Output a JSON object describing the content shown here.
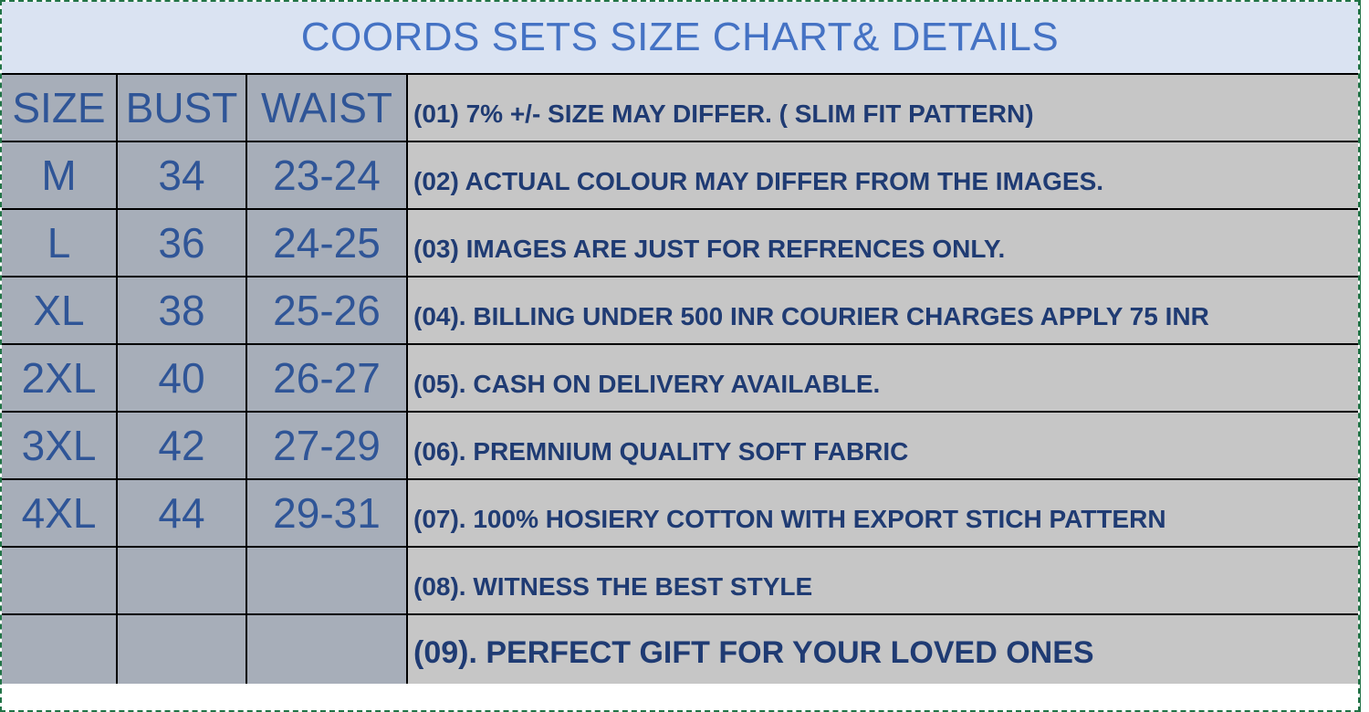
{
  "title": "COORDS SETS SIZE CHART& DETAILS",
  "headers": [
    "SIZE",
    "BUST",
    "WAIST"
  ],
  "rows": [
    {
      "size": "M",
      "bust": "34",
      "waist": "23-24"
    },
    {
      "size": "L",
      "bust": "36",
      "waist": "24-25"
    },
    {
      "size": "XL",
      "bust": "38",
      "waist": "25-26"
    },
    {
      "size": "2XL",
      "bust": "40",
      "waist": "26-27"
    },
    {
      "size": "3XL",
      "bust": "42",
      "waist": "27-29"
    },
    {
      "size": "4XL",
      "bust": "44",
      "waist": "29-31"
    },
    {
      "size": "",
      "bust": "",
      "waist": ""
    },
    {
      "size": "",
      "bust": "",
      "waist": ""
    }
  ],
  "details": [
    "(01)  7% +/- SIZE MAY DIFFER. ( SLIM FIT PATTERN)",
    "(02)   ACTUAL COLOUR MAY DIFFER FROM THE IMAGES.",
    "(03)   IMAGES ARE JUST FOR REFRENCES ONLY.",
    "(04).  BILLING UNDER 500 INR COURIER CHARGES APPLY 75 INR",
    "(05).  CASH ON DELIVERY AVAILABLE.",
    "(06).  PREMNIUM QUALITY SOFT FABRIC",
    "(07).  100% HOSIERY COTTON WITH EXPORT STICH PATTERN",
    "(08).  WITNESS THE BEST STYLE",
    "(09).  PERFECT GIFT FOR YOUR LOVED ONES"
  ],
  "colors": {
    "title_bg": "#dae3f2",
    "title_text": "#4472c4",
    "size_bg": "#a7aeb9",
    "size_text": "#2f5597",
    "detail_bg": "#c6c6c6",
    "detail_text": "#1f3b73",
    "selection_border": "#217346"
  }
}
